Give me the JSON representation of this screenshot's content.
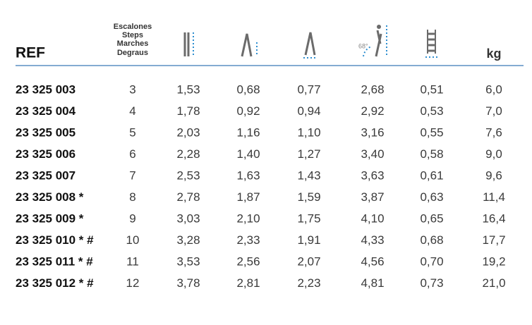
{
  "header": {
    "ref": "REF",
    "steps": [
      "Escalones",
      "Steps",
      "Marches",
      "Degraus"
    ],
    "angle": "68°",
    "weight": "kg"
  },
  "table": {
    "rows": [
      [
        "23 325 003",
        "3",
        "1,53",
        "0,68",
        "0,77",
        "2,68",
        "0,51",
        "6,0"
      ],
      [
        "23 325 004",
        "4",
        "1,78",
        "0,92",
        "0,94",
        "2,92",
        "0,53",
        "7,0"
      ],
      [
        "23 325 005",
        "5",
        "2,03",
        "1,16",
        "1,10",
        "3,16",
        "0,55",
        "7,6"
      ],
      [
        "23 325 006",
        "6",
        "2,28",
        "1,40",
        "1,27",
        "3,40",
        "0,58",
        "9,0"
      ],
      [
        "23 325 007",
        "7",
        "2,53",
        "1,63",
        "1,43",
        "3,63",
        "0,61",
        "9,6"
      ],
      [
        "23 325 008 *",
        "8",
        "2,78",
        "1,87",
        "1,59",
        "3,87",
        "0,63",
        "11,4"
      ],
      [
        "23 325 009 *",
        "9",
        "3,03",
        "2,10",
        "1,75",
        "4,10",
        "0,65",
        "16,4"
      ],
      [
        "23 325 010 * #",
        "10",
        "3,28",
        "2,33",
        "1,91",
        "4,33",
        "0,68",
        "17,7"
      ],
      [
        "23 325 011 * #",
        "11",
        "3,53",
        "2,56",
        "2,07",
        "4,56",
        "0,70",
        "19,2"
      ],
      [
        "23 325 012 * #",
        "12",
        "3,78",
        "2,81",
        "2,23",
        "4,81",
        "0,73",
        "21,0"
      ]
    ]
  }
}
